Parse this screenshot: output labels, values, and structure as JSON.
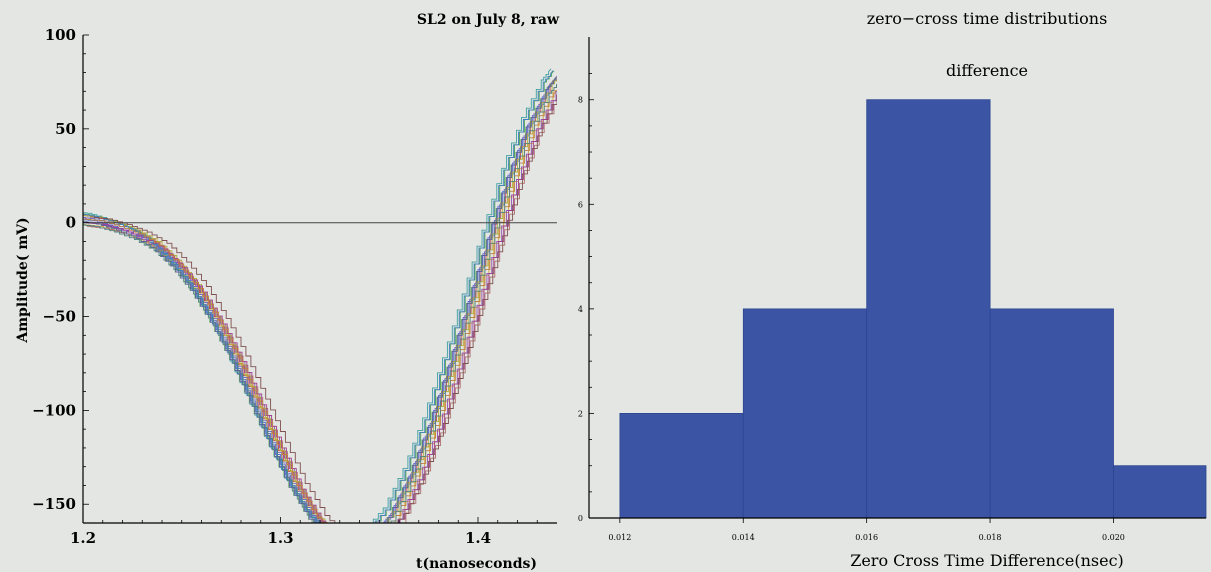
{
  "chart_data": [
    {
      "type": "line",
      "title": "SL2 on July 8, raw",
      "xlabel": "t(nanoseconds)",
      "ylabel": "Amplitude( mV)",
      "xlim": [
        1.2,
        1.44
      ],
      "ylim": [
        -160,
        100
      ],
      "xticks": [
        "1.2",
        "1.3",
        "1.4"
      ],
      "yticks": [
        "100",
        "50",
        "0",
        "−50",
        "−100",
        "−150"
      ],
      "xtick_values": [
        1.2,
        1.3,
        1.4
      ],
      "ytick_values": [
        100,
        50,
        0,
        -50,
        -100,
        -150
      ],
      "reference_line_y": 0,
      "series_colors": [
        "#5a6bd0",
        "#c04848",
        "#d0a040",
        "#50a050",
        "#9050b0",
        "#40a0a0",
        "#b07070",
        "#7070c0",
        "#60b060",
        "#b0b040",
        "#a04090",
        "#4080c0",
        "#c08040",
        "#508080",
        "#805050",
        "#6060a0"
      ],
      "series_time_shifts": [
        0.0,
        0.0015,
        0.003,
        -0.0015,
        0.0045,
        -0.003,
        0.006,
        0.0008,
        -0.0008,
        0.0025,
        0.0055,
        -0.002,
        0.0035,
        0.001,
        0.0075,
        -0.0005
      ],
      "series_offsets": [
        0,
        2,
        -3,
        3,
        -2,
        4,
        -4,
        1,
        -1,
        2,
        -2,
        3,
        0,
        -3,
        1,
        -1
      ],
      "waveform_shape": {
        "t": [
          1.196,
          1.205,
          1.215,
          1.225,
          1.235,
          1.245,
          1.255,
          1.265,
          1.275,
          1.285,
          1.295,
          1.305,
          1.315,
          1.325,
          1.335,
          1.345,
          1.355,
          1.365,
          1.375,
          1.385,
          1.395,
          1.405,
          1.415,
          1.425,
          1.435,
          1.44
        ],
        "amplitude": [
          2,
          1,
          -2,
          -6,
          -12,
          -22,
          -35,
          -52,
          -72,
          -95,
          -118,
          -140,
          -157,
          -168,
          -172,
          -168,
          -156,
          -135,
          -108,
          -76,
          -42,
          -8,
          25,
          52,
          72,
          78
        ]
      }
    },
    {
      "type": "bar",
      "title": "zero−cross time distributions",
      "annotation": "difference",
      "xlabel": "Zero Cross Time Difference(nsec)",
      "ylabel": "",
      "bins": [
        [
          0.012,
          0.014
        ],
        [
          0.014,
          0.016
        ],
        [
          0.016,
          0.018
        ],
        [
          0.018,
          0.02
        ],
        [
          0.02,
          0.022
        ]
      ],
      "values": [
        2,
        4,
        8,
        4,
        1
      ],
      "xlim": [
        0.0115,
        0.0215
      ],
      "ylim": [
        0,
        9.2
      ],
      "xticks": [
        "0.012",
        "0.014",
        "0.016",
        "0.018",
        "0.020"
      ],
      "xtick_values": [
        0.012,
        0.014,
        0.016,
        0.018,
        0.02
      ],
      "yticks": [
        "0",
        "2",
        "4",
        "6",
        "8"
      ],
      "ytick_values": [
        0,
        2,
        4,
        6,
        8
      ],
      "bar_color": "#3b54a4"
    }
  ]
}
